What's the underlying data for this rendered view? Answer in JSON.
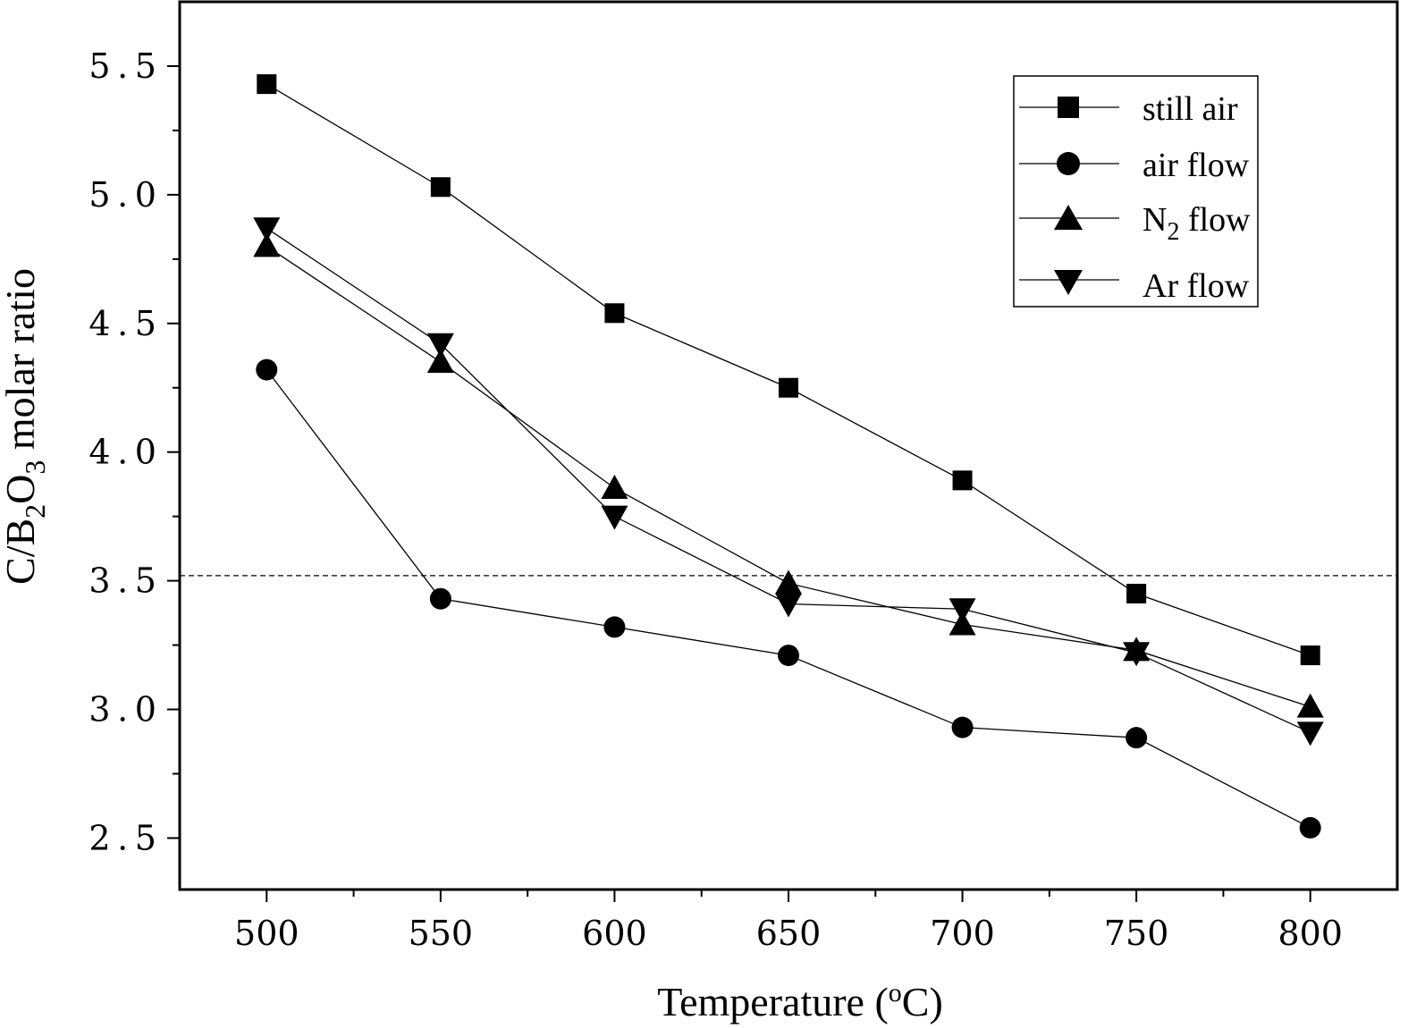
{
  "chart_data": {
    "type": "line",
    "title": "",
    "xlabel": "Temperature (°C)",
    "xlabel_parts": {
      "main": "Temperature (",
      "sup": "o",
      "tail": "C)"
    },
    "ylabel": "C/B2O3 molar ratio",
    "ylabel_parts": {
      "a": "C/B",
      "sub1": "2",
      "b": "O",
      "sub2": "3",
      "c": " molar ratio"
    },
    "x": [
      500,
      550,
      600,
      650,
      700,
      750,
      800
    ],
    "xlim": [
      475,
      825
    ],
    "ylim": [
      2.3,
      5.75
    ],
    "xticks": [
      "500",
      "550",
      "600",
      "650",
      "700",
      "750",
      "800"
    ],
    "yticks": [
      "2.5",
      "3.0",
      "3.5",
      "4.0",
      "4.5",
      "5.0",
      "5.5"
    ],
    "reference_line": {
      "y": 3.52,
      "style": "dashed"
    },
    "legend_position": "top-right",
    "series": [
      {
        "name": "still air",
        "marker": "square",
        "values": [
          5.43,
          5.03,
          4.54,
          4.25,
          3.89,
          3.45,
          3.21
        ]
      },
      {
        "name": "air flow",
        "marker": "circle",
        "values": [
          4.32,
          3.43,
          3.32,
          3.21,
          2.93,
          2.89,
          2.54
        ]
      },
      {
        "name": "N2 flow",
        "name_parts": {
          "a": "N",
          "sub": "2",
          "b": " flow"
        },
        "marker": "triangle-up",
        "values": [
          4.8,
          4.35,
          3.86,
          3.49,
          3.33,
          3.23,
          3.01
        ]
      },
      {
        "name": "Ar flow",
        "marker": "triangle-down",
        "values": [
          4.87,
          4.42,
          3.75,
          3.41,
          3.39,
          3.22,
          2.91
        ]
      }
    ]
  }
}
